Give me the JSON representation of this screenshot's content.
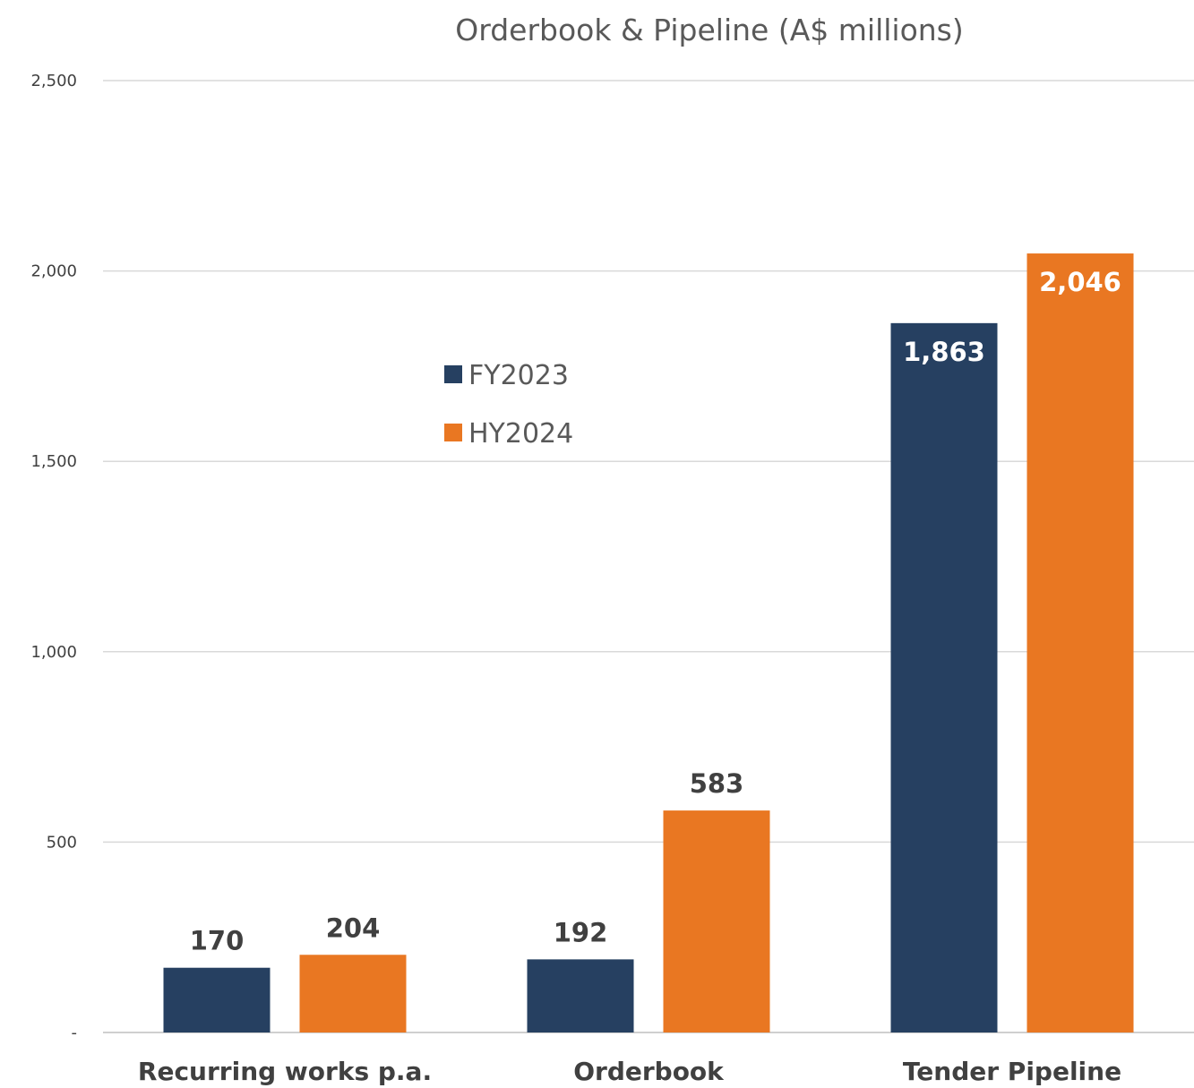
{
  "chart_data": {
    "type": "bar",
    "title": "Orderbook & Pipeline (A$ millions)",
    "categories": [
      "Recurring  works p.a.",
      "Orderbook",
      "Tender Pipeline"
    ],
    "series": [
      {
        "name": "FY2023",
        "color": "#264061",
        "values": [
          170,
          192,
          1863
        ],
        "labels": [
          "170",
          "192",
          "1,863"
        ]
      },
      {
        "name": "HY2024",
        "color": "#E97722",
        "values": [
          204,
          583,
          2046
        ],
        "labels": [
          "204",
          "583",
          "2,046"
        ]
      }
    ],
    "ylim": [
      0,
      2500
    ],
    "yticks": [
      0,
      500,
      1000,
      1500,
      2000,
      2500
    ],
    "ytick_labels": [
      "-",
      "500",
      "1,000",
      "1,500",
      "2,000",
      "2,500"
    ],
    "xlabel": "",
    "ylabel": "",
    "grid": true,
    "legend_position": "upper-center"
  }
}
